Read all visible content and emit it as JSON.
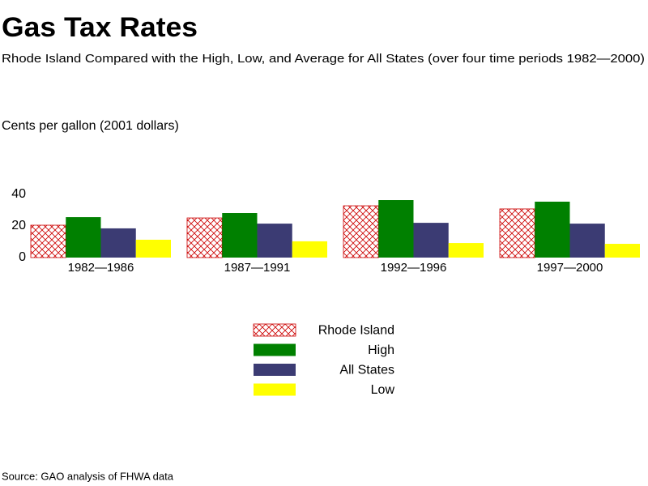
{
  "chart_data": {
    "type": "bar",
    "title": "Gas Tax Rates",
    "subtitle": "Rhode Island Compared with the High, Low, and Average for All States (over four time periods 1982—2000)",
    "y_label": "Cents per gallon (2001 dollars)",
    "source": "Source: GAO analysis of FHWA data",
    "categories": [
      "1982—1986",
      "1987—1991",
      "1992—1996",
      "1997—2000"
    ],
    "series": [
      {
        "name": "Rhode Island",
        "color": "#cc0000",
        "pattern": "crosshatch",
        "values": [
          20.5,
          25.1,
          32.8,
          30.8
        ]
      },
      {
        "name": "High",
        "color": "#008000",
        "values": [
          25.6,
          28.2,
          36.4,
          35.4
        ]
      },
      {
        "name": "All States",
        "color": "#3b3b73",
        "values": [
          18.5,
          21.5,
          22,
          21.5
        ]
      },
      {
        "name": "Low",
        "color": "#ffff00",
        "values": [
          11.3,
          10.3,
          9.2,
          8.7
        ]
      }
    ],
    "ylim": [
      0,
      40
    ],
    "yticks": [
      0,
      20,
      40
    ],
    "grid": false
  }
}
